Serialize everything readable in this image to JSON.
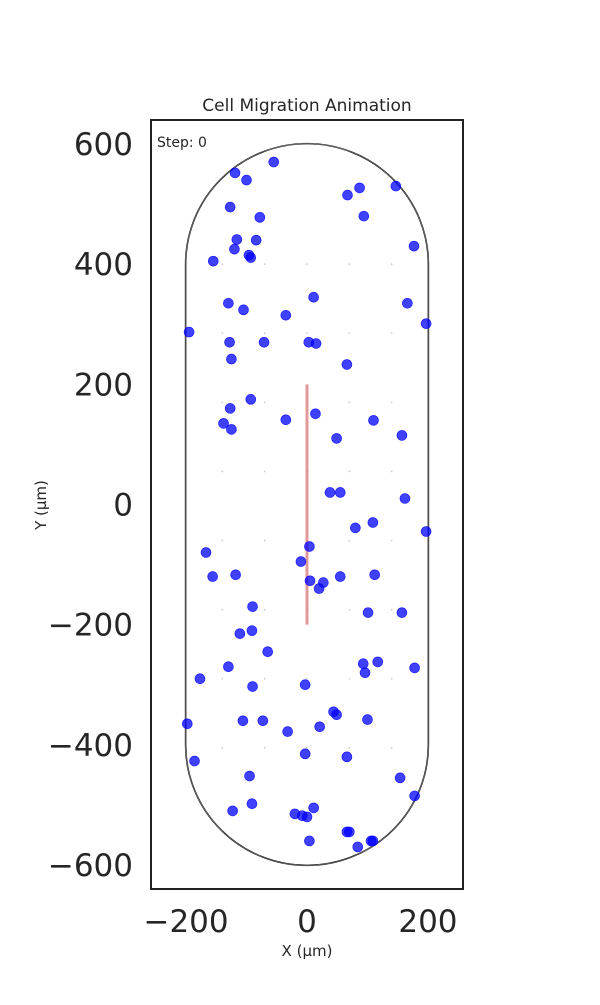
{
  "chart_data": {
    "type": "scatter",
    "title": "Cell Migration Animation",
    "xlabel": "X (µm)",
    "ylabel": "Y (µm)",
    "annotation": "Step: 0",
    "xlim": [
      -258,
      258
    ],
    "ylim": [
      -640,
      640
    ],
    "xticks": [
      -200,
      0,
      200
    ],
    "xtick_labels": [
      "−200",
      "0",
      "200"
    ],
    "yticks": [
      600,
      400,
      200,
      0,
      -200,
      -400,
      -600
    ],
    "ytick_labels": [
      "600",
      "400",
      "200",
      "0",
      "−200",
      "−400",
      "−600"
    ],
    "grid": false,
    "legend": "none",
    "colors": {
      "points": "#0000ff",
      "boundary": "#222222",
      "centerline": "#d97f7f",
      "frame": "#222222",
      "guide": "#cccccc"
    },
    "boundary": {
      "shape": "stadium",
      "half_width": 200,
      "straight_half_length": 400,
      "cap_radius": 200
    },
    "centerline": {
      "x": 0,
      "y": [
        -200,
        200
      ]
    },
    "points": {
      "x": [
        -55,
        87,
        -119,
        147,
        -100,
        -127,
        67,
        -78,
        94,
        -84,
        177,
        -116,
        -120,
        -96,
        -93,
        -155,
        -130,
        -105,
        11,
        -35,
        166,
        197,
        -195,
        -128,
        3,
        15,
        -71,
        -125,
        66,
        -93,
        -127,
        14,
        -138,
        -35,
        110,
        -125,
        49,
        157,
        38,
        55,
        162,
        80,
        109,
        197,
        -167,
        -10,
        4,
        -156,
        -118,
        27,
        20,
        112,
        55,
        5,
        101,
        -90,
        157,
        -111,
        -65,
        -91,
        -130,
        93,
        117,
        178,
        96,
        -177,
        -90,
        -3,
        44,
        49,
        -106,
        100,
        -32,
        -73,
        21,
        66,
        -3,
        -198,
        154,
        -186,
        178,
        -95,
        106,
        -91,
        -123,
        11,
        -8,
        70,
        -20,
        0,
        66,
        109,
        4,
        84
      ],
      "y": [
        570,
        527,
        552,
        530,
        540,
        495,
        515,
        478,
        480,
        440,
        430,
        441,
        425,
        415,
        411,
        405,
        335,
        324,
        345,
        315,
        335,
        301,
        287,
        270,
        270,
        268,
        270,
        242,
        233,
        175,
        160,
        151,
        135,
        141,
        140,
        125,
        110,
        115,
        20,
        20,
        10,
        -39,
        -30,
        -45,
        -80,
        -95,
        -70,
        -120,
        -117,
        -130,
        -140,
        -117,
        -120,
        -127,
        -180,
        -170,
        -180,
        -215,
        -245,
        -210,
        -270,
        -265,
        -262,
        -272,
        -280,
        -290,
        -303,
        -300,
        -345,
        -350,
        -360,
        -358,
        -378,
        -360,
        -370,
        -420,
        -415,
        -365,
        -455,
        -427,
        -485,
        -452,
        -560,
        -498,
        -510,
        -505,
        -518,
        -545,
        -515,
        -520,
        -545,
        -560,
        -560,
        -570
      ]
    }
  }
}
